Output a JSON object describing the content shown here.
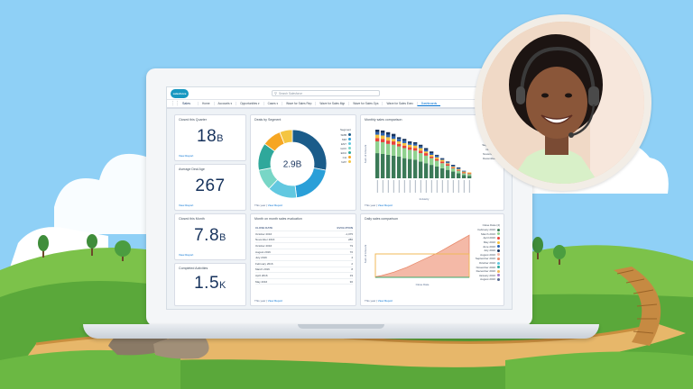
{
  "header": {
    "logo_text": "salesforce",
    "search_placeholder": "Search Salesforce"
  },
  "nav": {
    "app_name": "Sales",
    "items": [
      {
        "label": "Home",
        "active": false
      },
      {
        "label": "Accounts ▾",
        "active": false
      },
      {
        "label": "Opportunities ▾",
        "active": false
      },
      {
        "label": "Cases ▾",
        "active": false
      },
      {
        "label": "Wave for Sales Rep",
        "active": false
      },
      {
        "label": "Wave for Sales Mgr",
        "active": false
      },
      {
        "label": "Wave for Sales Ops",
        "active": false
      },
      {
        "label": "Wave for Sales Exec",
        "active": false
      },
      {
        "label": "Dashboards",
        "active": true
      }
    ]
  },
  "cards": {
    "closed_quarter": {
      "title": "Closed this Quarter",
      "value": "18",
      "suffix": "B",
      "link": "View Report"
    },
    "avg_deal": {
      "title": "Average Deal Age",
      "value": "267",
      "suffix": "",
      "link": "View Report"
    },
    "closed_month": {
      "title": "Closed this Month",
      "value": "7.8",
      "suffix": "B",
      "link": "View Report"
    },
    "completed": {
      "title": "Completed Activities",
      "value": "1.5",
      "suffix": "K",
      "link": "View Report"
    },
    "deals_segment": {
      "title": "Deals by Segment",
      "center": "2.9B",
      "footnote_prefix": "This year | ",
      "footnote_link": "View Report"
    },
    "monthly": {
      "title": "Monthly sales comparison",
      "footnote_prefix": "This year | ",
      "footnote_link": "View Report"
    },
    "mom": {
      "title": "Month on month sales evaluation",
      "footnote_prefix": "This year | ",
      "footnote_link": "View Report"
    },
    "daily": {
      "title": "Daily sales comparison",
      "footnote_prefix": "This year | ",
      "footnote_link": "View Report"
    }
  },
  "segment_legend": {
    "title": "Segment",
    "items": [
      {
        "label": "SMB",
        "color": "#1b5c8a"
      },
      {
        "label": "MM",
        "color": "#2a9fd8"
      },
      {
        "label": "ENT",
        "color": "#62c8e0"
      },
      {
        "label": "GOV",
        "color": "#78d6c6"
      },
      {
        "label": "EDU",
        "color": "#2fa89b"
      },
      {
        "label": "CH",
        "color": "#f6a623"
      },
      {
        "label": "NAT",
        "color": "#f4c542"
      }
    ]
  },
  "chart_data": [
    {
      "type": "pie",
      "title": "Deals by Segment",
      "categories": [
        "SMB",
        "MM",
        "ENT",
        "GOV",
        "EDU",
        "CH",
        "NAT"
      ],
      "values": [
        28,
        20,
        14,
        10,
        13,
        9,
        6
      ],
      "center_label": "2.9B"
    },
    {
      "type": "bar",
      "title": "Monthly sales comparison",
      "ylabel": "Sum of Amount",
      "xlabel": "Industry",
      "series": [
        {
          "name": "July",
          "color": "#3b7a57",
          "values": [
            30,
            29,
            28,
            27,
            26,
            24,
            23,
            22,
            20,
            18,
            16,
            14,
            12,
            10,
            8,
            6,
            4,
            3
          ]
        },
        {
          "name": "August",
          "color": "#8fd18f",
          "values": [
            14,
            14,
            13,
            13,
            12,
            12,
            11,
            11,
            10,
            9,
            8,
            7,
            6,
            5,
            4,
            3,
            2,
            2
          ]
        },
        {
          "name": "September",
          "color": "#e8433b",
          "values": [
            4,
            4,
            4,
            4,
            3,
            3,
            3,
            3,
            3,
            3,
            2,
            2,
            2,
            2,
            1,
            1,
            1,
            1
          ]
        },
        {
          "name": "October",
          "color": "#f5c13e",
          "values": [
            4,
            4,
            4,
            3,
            3,
            3,
            3,
            3,
            3,
            2,
            2,
            2,
            2,
            1,
            1,
            1,
            1,
            1
          ]
        },
        {
          "name": "November",
          "color": "#2a63b3",
          "values": [
            3,
            3,
            3,
            3,
            3,
            3,
            2,
            2,
            2,
            2,
            2,
            2,
            1,
            1,
            1,
            1,
            1,
            0
          ]
        },
        {
          "name": "December",
          "color": "#16325c",
          "values": [
            3,
            3,
            3,
            3,
            2,
            2,
            2,
            2,
            2,
            2,
            2,
            1,
            1,
            1,
            1,
            1,
            0,
            0
          ]
        }
      ],
      "legend_placement": "right"
    },
    {
      "type": "table",
      "title": "Month on month sales evaluation",
      "columns": [
        "CLOSE DATE",
        "EVOLUTION"
      ],
      "rows": [
        [
          "October 2016",
          "-1,075"
        ],
        [
          "November 2016",
          "286"
        ],
        [
          "October 2016",
          "79"
        ],
        [
          "August 2016",
          "76"
        ],
        [
          "July 2016",
          "4"
        ],
        [
          "February 2016",
          "2"
        ],
        [
          "March 2016",
          "8"
        ],
        [
          "April 2016",
          "19"
        ],
        [
          "May 2016",
          "30"
        ]
      ]
    },
    {
      "type": "area",
      "title": "Daily sales comparison",
      "xlabel": "Close Date",
      "ylabel": "Sum of Amount",
      "legend_title": "Close Date (4)",
      "legend": [
        "February 2016",
        "March 2016",
        "April 2016",
        "May 2016",
        "June 2016",
        "July 2016",
        "August 2016",
        "September 2016",
        "October 2016",
        "November 2016",
        "December 2016",
        "January 2016",
        "August 2016"
      ],
      "series": [
        {
          "name": "cumulative",
          "values": [
            1,
            3,
            6,
            9,
            13,
            17,
            22,
            27,
            32,
            37,
            42,
            48,
            54,
            60,
            66,
            72
          ]
        },
        {
          "name": "target",
          "values": [
            40,
            40,
            40,
            40,
            40,
            40,
            40,
            40,
            40,
            40,
            40,
            40,
            40,
            40,
            40,
            40
          ]
        }
      ]
    }
  ],
  "colors": {
    "accent": "#0070d2",
    "brand": "#1798c1",
    "text_dark": "#16325c"
  }
}
